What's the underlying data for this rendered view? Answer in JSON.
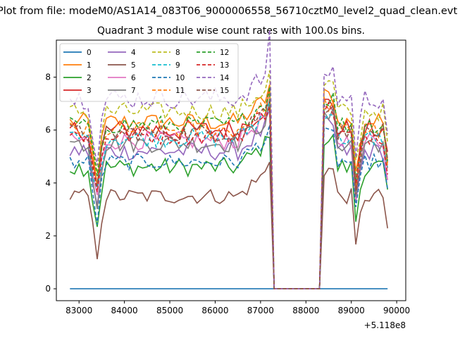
{
  "header": {
    "suptitle": "Plot from file: modeM0/AS1A14_083T06_9000006558_56710cztM0_level2_quad_clean.evt",
    "title": "Quadrant 3 module wise count rates with 100.0s bins."
  },
  "chart_data": {
    "type": "line",
    "title": "Quadrant 3 module wise count rates with 100.0s bins.",
    "xlabel": "",
    "ylabel": "",
    "x_offset_label": "+5.118e8",
    "xlim": [
      82500,
      90200
    ],
    "ylim": [
      -0.45,
      9.4
    ],
    "xticks": [
      83000,
      84000,
      85000,
      86000,
      87000,
      88000,
      89000,
      90000
    ],
    "yticks": [
      0,
      2,
      4,
      6,
      8
    ],
    "legend": {
      "location": "top-left",
      "columns": 4
    },
    "series": [
      {
        "name": "0",
        "color": "#1f77b4",
        "dash": false,
        "base": 0.0,
        "jit": 0.0
      },
      {
        "name": "1",
        "color": "#ff7f0e",
        "dash": false,
        "base": 6.3,
        "jit": 0.35
      },
      {
        "name": "2",
        "color": "#2ca02c",
        "dash": false,
        "base": 4.6,
        "jit": 0.35
      },
      {
        "name": "3",
        "color": "#d62728",
        "dash": false,
        "base": 6.0,
        "jit": 0.4
      },
      {
        "name": "4",
        "color": "#9467bd",
        "dash": false,
        "base": 5.2,
        "jit": 0.35
      },
      {
        "name": "5",
        "color": "#8c564b",
        "dash": false,
        "base": 3.5,
        "jit": 0.3
      },
      {
        "name": "6",
        "color": "#e377c2",
        "dash": false,
        "base": 5.6,
        "jit": 0.35
      },
      {
        "name": "7",
        "color": "#7f7f7f",
        "dash": false,
        "base": 5.5,
        "jit": 0.35
      },
      {
        "name": "8",
        "color": "#bcbd22",
        "dash": true,
        "base": 6.7,
        "jit": 0.35
      },
      {
        "name": "9",
        "color": "#17becf",
        "dash": true,
        "base": 5.7,
        "jit": 0.35
      },
      {
        "name": "10",
        "color": "#1f77b4",
        "dash": true,
        "base": 4.8,
        "jit": 0.3
      },
      {
        "name": "11",
        "color": "#ff7f0e",
        "dash": true,
        "base": 6.0,
        "jit": 0.35
      },
      {
        "name": "12",
        "color": "#2ca02c",
        "dash": true,
        "base": 6.2,
        "jit": 0.35
      },
      {
        "name": "13",
        "color": "#d62728",
        "dash": true,
        "base": 5.8,
        "jit": 0.35
      },
      {
        "name": "14",
        "color": "#9467bd",
        "dash": true,
        "base": 7.2,
        "jit": 0.4
      },
      {
        "name": "15",
        "color": "#8c564b",
        "dash": true,
        "base": 5.9,
        "jit": 0.35
      }
    ]
  }
}
